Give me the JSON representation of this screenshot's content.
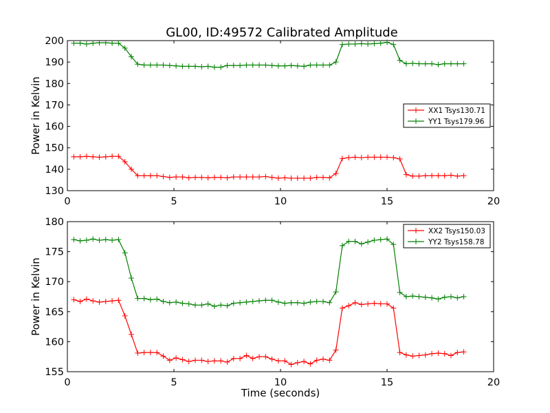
{
  "title": "GL00, ID:49572 Calibrated Amplitude",
  "colors": {
    "red": "#ff0000",
    "green": "#008000"
  },
  "chart_data": [
    {
      "type": "line",
      "title": "GL00, ID:49572 Calibrated Amplitude",
      "xlabel": "",
      "ylabel": "Power in Kelvin",
      "xlim": [
        0,
        20
      ],
      "ylim": [
        130,
        200
      ],
      "xticks": [
        "0",
        "5",
        "10",
        "15",
        "20"
      ],
      "yticks": [
        "130",
        "140",
        "150",
        "160",
        "170",
        "180",
        "190",
        "200"
      ],
      "grid": false,
      "legend_position": "center-right",
      "marker": "+",
      "x": [
        0.3,
        0.6,
        0.9,
        1.2,
        1.5,
        1.8,
        2.1,
        2.4,
        2.7,
        3.0,
        3.3,
        3.6,
        3.9,
        4.2,
        4.5,
        4.8,
        5.1,
        5.4,
        5.7,
        6.0,
        6.3,
        6.6,
        6.9,
        7.2,
        7.5,
        7.8,
        8.1,
        8.4,
        8.7,
        9.0,
        9.3,
        9.6,
        9.9,
        10.2,
        10.5,
        10.8,
        11.1,
        11.4,
        11.7,
        12.0,
        12.3,
        12.6,
        12.9,
        13.2,
        13.5,
        13.8,
        14.1,
        14.4,
        14.7,
        15.0,
        15.3,
        15.6,
        15.9,
        16.2,
        16.5,
        16.8,
        17.1,
        17.4,
        17.7,
        18.0,
        18.3,
        18.6
      ],
      "series": [
        {
          "name": "XX1 Tsys130.71",
          "color": "#ff0000",
          "values": [
            145.8,
            145.8,
            146.0,
            145.8,
            145.6,
            145.8,
            146.0,
            146.0,
            143.5,
            140.0,
            137.0,
            137.0,
            137.0,
            137.0,
            136.6,
            136.2,
            136.4,
            136.4,
            136.0,
            136.2,
            136.2,
            136.0,
            136.2,
            136.2,
            136.0,
            136.4,
            136.4,
            136.4,
            136.4,
            136.4,
            136.6,
            136.2,
            135.8,
            136.0,
            135.8,
            135.8,
            135.8,
            135.8,
            136.2,
            136.2,
            136.0,
            138.0,
            145.0,
            145.4,
            145.6,
            145.4,
            145.6,
            145.6,
            145.6,
            145.6,
            145.4,
            144.8,
            137.5,
            136.8,
            136.8,
            137.0,
            137.0,
            137.0,
            137.0,
            137.2,
            136.8,
            137.0
          ]
        },
        {
          "name": "YY1 Tsys179.96",
          "color": "#008000",
          "values": [
            198.8,
            198.8,
            198.4,
            198.8,
            199.0,
            199.0,
            198.8,
            198.8,
            196.5,
            192.5,
            189.0,
            188.6,
            188.6,
            188.6,
            188.6,
            188.4,
            188.2,
            188.0,
            188.0,
            188.0,
            187.8,
            188.0,
            187.6,
            187.6,
            188.4,
            188.4,
            188.4,
            188.6,
            188.6,
            188.6,
            188.6,
            188.4,
            188.2,
            188.2,
            188.4,
            188.2,
            188.0,
            188.6,
            188.6,
            188.6,
            188.6,
            190.0,
            198.2,
            198.4,
            198.4,
            198.6,
            198.4,
            198.6,
            198.8,
            199.2,
            198.2,
            190.8,
            189.2,
            189.4,
            189.2,
            189.2,
            189.2,
            188.8,
            189.2,
            189.2,
            189.2,
            189.2
          ]
        }
      ]
    },
    {
      "type": "line",
      "title": "",
      "xlabel": "Time (seconds)",
      "ylabel": "Power in Kelvin",
      "xlim": [
        0,
        20
      ],
      "ylim": [
        155,
        180
      ],
      "xticks": [
        "0",
        "5",
        "10",
        "15",
        "20"
      ],
      "yticks": [
        "155",
        "160",
        "165",
        "170",
        "175",
        "180"
      ],
      "grid": false,
      "legend_position": "top-right",
      "marker": "+",
      "x": [
        0.3,
        0.6,
        0.9,
        1.2,
        1.5,
        1.8,
        2.1,
        2.4,
        2.7,
        3.0,
        3.3,
        3.6,
        3.9,
        4.2,
        4.5,
        4.8,
        5.1,
        5.4,
        5.7,
        6.0,
        6.3,
        6.6,
        6.9,
        7.2,
        7.5,
        7.8,
        8.1,
        8.4,
        8.7,
        9.0,
        9.3,
        9.6,
        9.9,
        10.2,
        10.5,
        10.8,
        11.1,
        11.4,
        11.7,
        12.0,
        12.3,
        12.6,
        12.9,
        13.2,
        13.5,
        13.8,
        14.1,
        14.4,
        14.7,
        15.0,
        15.3,
        15.6,
        15.9,
        16.2,
        16.5,
        16.8,
        17.1,
        17.4,
        17.7,
        18.0,
        18.3,
        18.6
      ],
      "series": [
        {
          "name": "XX2 Tsys150.03",
          "color": "#ff0000",
          "values": [
            167.0,
            166.7,
            167.1,
            166.8,
            166.6,
            166.7,
            166.8,
            166.9,
            164.3,
            161.2,
            158.1,
            158.2,
            158.2,
            158.2,
            157.6,
            156.9,
            157.3,
            157.0,
            156.7,
            156.9,
            156.9,
            156.7,
            156.8,
            156.8,
            156.6,
            157.2,
            157.2,
            157.7,
            157.2,
            157.5,
            157.5,
            157.1,
            156.8,
            156.8,
            156.2,
            156.5,
            156.7,
            156.3,
            156.9,
            157.1,
            156.9,
            158.6,
            165.6,
            166.0,
            166.5,
            166.2,
            166.3,
            166.4,
            166.3,
            166.3,
            165.6,
            158.2,
            157.8,
            157.6,
            157.7,
            157.8,
            158.0,
            158.1,
            158.0,
            157.7,
            158.2,
            158.3
          ]
        },
        {
          "name": "YY2 Tsys158.78",
          "color": "#008000",
          "values": [
            177.0,
            176.8,
            176.9,
            177.1,
            176.9,
            177.0,
            176.9,
            177.0,
            174.8,
            170.6,
            167.2,
            167.2,
            167.0,
            167.1,
            166.7,
            166.5,
            166.6,
            166.4,
            166.3,
            166.1,
            166.1,
            166.3,
            165.9,
            166.1,
            166.0,
            166.4,
            166.5,
            166.6,
            166.7,
            166.8,
            166.9,
            166.9,
            166.6,
            166.4,
            166.5,
            166.5,
            166.4,
            166.6,
            166.7,
            166.7,
            166.5,
            168.3,
            176.0,
            176.7,
            176.7,
            176.3,
            176.6,
            176.9,
            177.0,
            177.1,
            176.2,
            168.2,
            167.5,
            167.6,
            167.5,
            167.4,
            167.3,
            167.1,
            167.4,
            167.5,
            167.3,
            167.5
          ]
        }
      ]
    }
  ]
}
